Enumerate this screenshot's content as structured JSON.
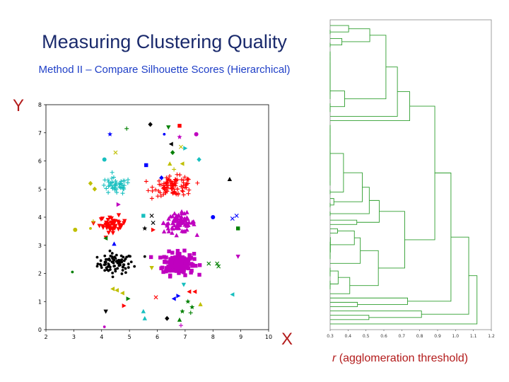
{
  "slide": {
    "title": "Measuring Clustering Quality",
    "subtitle": "Method II – Compare Silhouette Scores (Hierarchical)",
    "y_axis_letter": "Y",
    "x_axis_letter": "X",
    "dendro_axis_var": "r",
    "dendro_axis_rest": " (agglomeration threshold)"
  },
  "colors": {
    "title": "#1a2a6c",
    "subtitle": "#1f3fc7",
    "axis_letters": "#b31b1b",
    "dendrogram": "#2e9e2e"
  },
  "chart_data": [
    {
      "type": "scatter",
      "xlim": [
        2,
        10
      ],
      "ylim": [
        0,
        8
      ],
      "x_ticks": [
        2,
        3,
        4,
        5,
        6,
        7,
        8,
        9,
        10
      ],
      "y_ticks": [
        0,
        1,
        2,
        3,
        4,
        5,
        6,
        7,
        8
      ],
      "grid": false,
      "clusters": [
        {
          "color": "#000000",
          "marker": "dot",
          "cx": 4.5,
          "cy": 2.35,
          "sx": 0.32,
          "sy": 0.18,
          "n": 80
        },
        {
          "color": "#bf00bf",
          "marker": "square",
          "cx": 6.75,
          "cy": 2.35,
          "sx": 0.28,
          "sy": 0.2,
          "n": 160
        },
        {
          "color": "#ff0000",
          "marker": "tri-down",
          "cx": 4.4,
          "cy": 3.75,
          "sx": 0.24,
          "sy": 0.14,
          "n": 45
        },
        {
          "color": "#bf00bf",
          "marker": "tri-up",
          "cx": 6.8,
          "cy": 3.8,
          "sx": 0.28,
          "sy": 0.17,
          "n": 80
        },
        {
          "color": "#17bfbf",
          "marker": "plus",
          "cx": 4.5,
          "cy": 5.1,
          "sx": 0.28,
          "sy": 0.15,
          "n": 45
        },
        {
          "color": "#ff0000",
          "marker": "plus",
          "cx": 6.6,
          "cy": 5.1,
          "sx": 0.35,
          "sy": 0.17,
          "n": 100
        }
      ],
      "outliers": [
        {
          "x": 4.3,
          "y": 6.95,
          "c": "#0000ff",
          "m": "star"
        },
        {
          "x": 4.9,
          "y": 7.15,
          "c": "#008000",
          "m": "plus"
        },
        {
          "x": 5.75,
          "y": 7.3,
          "c": "#000000",
          "m": "diamond"
        },
        {
          "x": 6.4,
          "y": 7.2,
          "c": "#008000",
          "m": "tri-down"
        },
        {
          "x": 6.8,
          "y": 7.25,
          "c": "#ff0000",
          "m": "square"
        },
        {
          "x": 6.25,
          "y": 6.95,
          "c": "#0000ff",
          "m": "dot"
        },
        {
          "x": 6.8,
          "y": 6.85,
          "c": "#bf00bf",
          "m": "star"
        },
        {
          "x": 7.4,
          "y": 6.95,
          "c": "#bf00bf",
          "m": "circle"
        },
        {
          "x": 6.5,
          "y": 6.6,
          "c": "#000000",
          "m": "tri-left"
        },
        {
          "x": 6.85,
          "y": 6.5,
          "c": "#bfbf00",
          "m": "cross"
        },
        {
          "x": 7.0,
          "y": 6.45,
          "c": "#17bfbf",
          "m": "tri-right"
        },
        {
          "x": 6.55,
          "y": 6.3,
          "c": "#008000",
          "m": "diamond"
        },
        {
          "x": 4.5,
          "y": 6.3,
          "c": "#bfbf00",
          "m": "cross"
        },
        {
          "x": 4.1,
          "y": 6.05,
          "c": "#17bfbf",
          "m": "circle"
        },
        {
          "x": 7.5,
          "y": 6.05,
          "c": "#17bfbf",
          "m": "diamond"
        },
        {
          "x": 6.45,
          "y": 5.9,
          "c": "#bfbf00",
          "m": "tri-up"
        },
        {
          "x": 5.6,
          "y": 5.85,
          "c": "#0000ff",
          "m": "square"
        },
        {
          "x": 6.9,
          "y": 5.9,
          "c": "#bfbf00",
          "m": "tri-left"
        },
        {
          "x": 6.6,
          "y": 5.7,
          "c": "#bfbf00",
          "m": "plus"
        },
        {
          "x": 6.15,
          "y": 5.4,
          "c": "#0000ff",
          "m": "diamond"
        },
        {
          "x": 8.6,
          "y": 5.35,
          "c": "#000000",
          "m": "tri-up"
        },
        {
          "x": 3.6,
          "y": 5.2,
          "c": "#bfbf00",
          "m": "diamond"
        },
        {
          "x": 3.75,
          "y": 5.0,
          "c": "#bfbf00",
          "m": "diamond"
        },
        {
          "x": 4.6,
          "y": 4.45,
          "c": "#bf00bf",
          "m": "tri-right"
        },
        {
          "x": 5.5,
          "y": 4.05,
          "c": "#17bfbf",
          "m": "square"
        },
        {
          "x": 5.8,
          "y": 4.05,
          "c": "#000000",
          "m": "x"
        },
        {
          "x": 5.85,
          "y": 3.8,
          "c": "#000000",
          "m": "x"
        },
        {
          "x": 5.55,
          "y": 3.6,
          "c": "#000000",
          "m": "star"
        },
        {
          "x": 5.85,
          "y": 3.55,
          "c": "#ff0000",
          "m": "tri-right"
        },
        {
          "x": 8.0,
          "y": 4.0,
          "c": "#0000ff",
          "m": "circle"
        },
        {
          "x": 8.7,
          "y": 3.95,
          "c": "#0000ff",
          "m": "x"
        },
        {
          "x": 8.85,
          "y": 4.05,
          "c": "#0000ff",
          "m": "x"
        },
        {
          "x": 8.9,
          "y": 3.6,
          "c": "#008000",
          "m": "square"
        },
        {
          "x": 3.05,
          "y": 3.55,
          "c": "#bfbf00",
          "m": "circle"
        },
        {
          "x": 3.6,
          "y": 3.6,
          "c": "#bfbf00",
          "m": "dot"
        },
        {
          "x": 3.7,
          "y": 3.85,
          "c": "#bfbf00",
          "m": "plus"
        },
        {
          "x": 4.15,
          "y": 3.25,
          "c": "#008000",
          "m": "tri-left"
        },
        {
          "x": 4.45,
          "y": 3.05,
          "c": "#0000ff",
          "m": "tri-up"
        },
        {
          "x": 8.9,
          "y": 2.6,
          "c": "#bf00bf",
          "m": "tri-down"
        },
        {
          "x": 5.55,
          "y": 2.6,
          "c": "#000000",
          "m": "dot"
        },
        {
          "x": 2.95,
          "y": 2.05,
          "c": "#008000",
          "m": "dot"
        },
        {
          "x": 7.85,
          "y": 2.35,
          "c": "#008000",
          "m": "x"
        },
        {
          "x": 8.15,
          "y": 2.35,
          "c": "#008000",
          "m": "x"
        },
        {
          "x": 8.2,
          "y": 2.25,
          "c": "#008000",
          "m": "x"
        },
        {
          "x": 5.8,
          "y": 2.2,
          "c": "#bfbf00",
          "m": "tri-down"
        },
        {
          "x": 6.95,
          "y": 1.6,
          "c": "#17bfbf",
          "m": "tri-down"
        },
        {
          "x": 4.4,
          "y": 1.45,
          "c": "#bfbf00",
          "m": "tri-left"
        },
        {
          "x": 4.55,
          "y": 1.4,
          "c": "#bfbf00",
          "m": "tri-left"
        },
        {
          "x": 4.75,
          "y": 1.3,
          "c": "#bfbf00",
          "m": "tri-left"
        },
        {
          "x": 4.95,
          "y": 1.1,
          "c": "#008000",
          "m": "tri-right"
        },
        {
          "x": 5.95,
          "y": 1.15,
          "c": "#ff0000",
          "m": "x"
        },
        {
          "x": 6.6,
          "y": 1.1,
          "c": "#0000ff",
          "m": "tri-left"
        },
        {
          "x": 6.75,
          "y": 1.2,
          "c": "#0000ff",
          "m": "tri-right"
        },
        {
          "x": 7.15,
          "y": 1.35,
          "c": "#ff0000",
          "m": "tri-left"
        },
        {
          "x": 7.35,
          "y": 1.35,
          "c": "#ff0000",
          "m": "tri-left"
        },
        {
          "x": 8.7,
          "y": 1.25,
          "c": "#17bfbf",
          "m": "tri-left"
        },
        {
          "x": 7.1,
          "y": 1.0,
          "c": "#008000",
          "m": "star"
        },
        {
          "x": 7.25,
          "y": 0.8,
          "c": "#008000",
          "m": "star"
        },
        {
          "x": 7.55,
          "y": 0.9,
          "c": "#bfbf00",
          "m": "tri-up"
        },
        {
          "x": 4.8,
          "y": 0.85,
          "c": "#ff0000",
          "m": "tri-right"
        },
        {
          "x": 4.15,
          "y": 0.65,
          "c": "#000000",
          "m": "tri-down"
        },
        {
          "x": 5.5,
          "y": 0.65,
          "c": "#17bfbf",
          "m": "tri-up"
        },
        {
          "x": 6.9,
          "y": 0.65,
          "c": "#008000",
          "m": "star"
        },
        {
          "x": 7.2,
          "y": 0.6,
          "c": "#008000",
          "m": "plus"
        },
        {
          "x": 5.55,
          "y": 0.4,
          "c": "#17bfbf",
          "m": "tri-up"
        },
        {
          "x": 6.35,
          "y": 0.4,
          "c": "#000000",
          "m": "diamond"
        },
        {
          "x": 6.8,
          "y": 0.35,
          "c": "#008000",
          "m": "tri-up"
        },
        {
          "x": 4.1,
          "y": 0.1,
          "c": "#bf00bf",
          "m": "dot"
        },
        {
          "x": 6.85,
          "y": 0.15,
          "c": "#bf00bf",
          "m": "plus"
        }
      ]
    },
    {
      "type": "dendrogram",
      "orientation": "horizontal",
      "xlim": [
        0.3,
        1.2
      ],
      "x_ticks": [
        "0.3",
        "0.4",
        "0.5",
        "0.6",
        "0.7",
        "0.8",
        "0.9",
        "1.0",
        "1.1",
        "1.2"
      ],
      "leaves": 70,
      "root_height": 1.12
    }
  ]
}
